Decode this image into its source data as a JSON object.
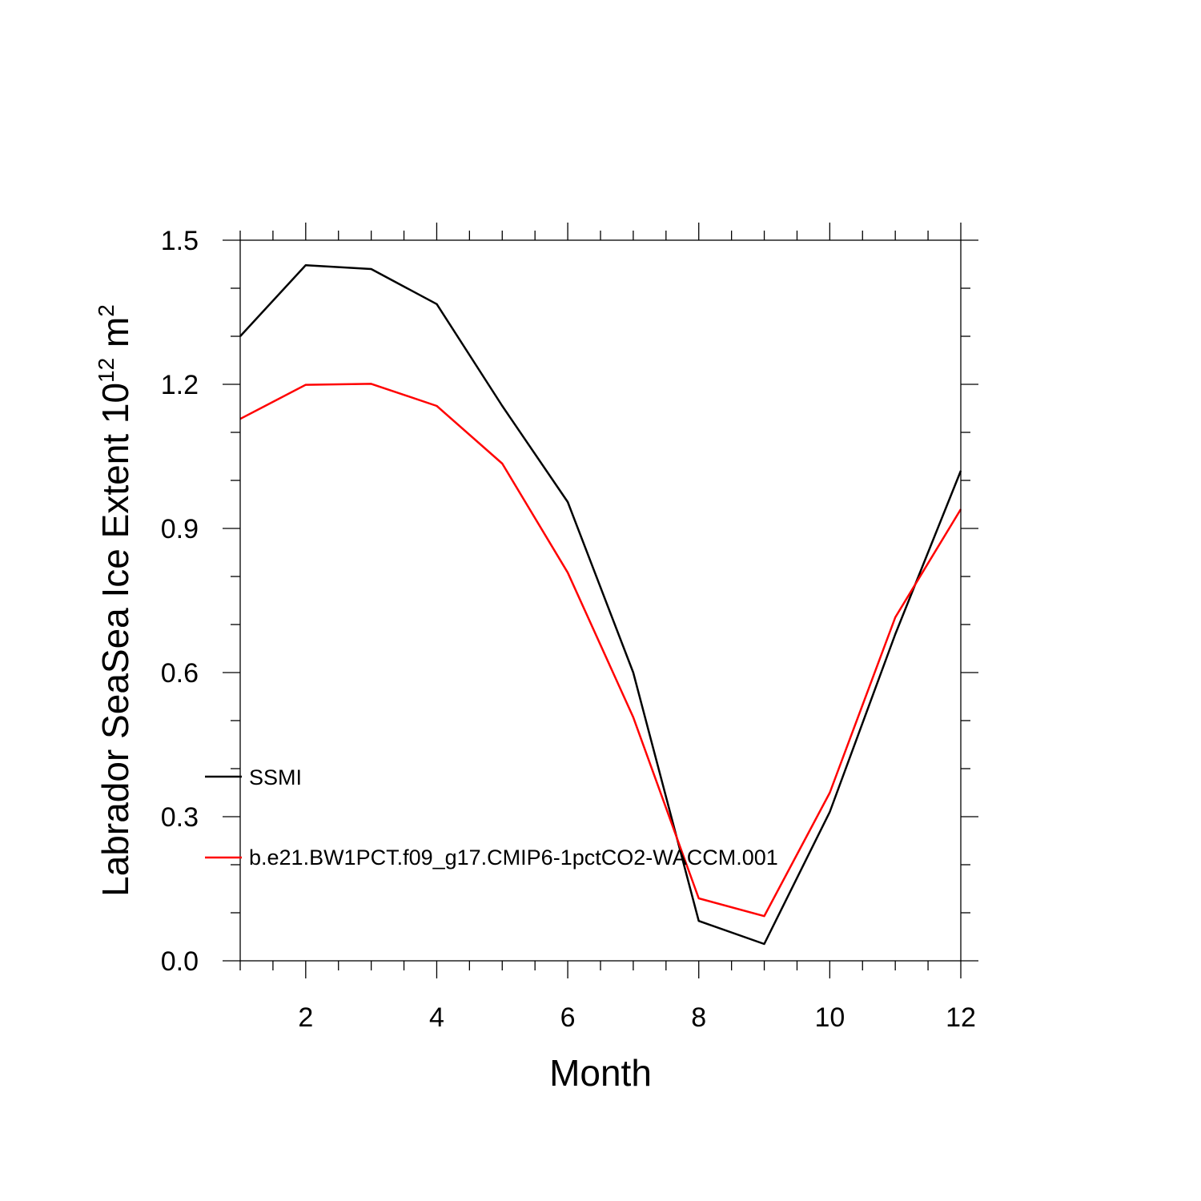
{
  "chart_data": {
    "type": "line",
    "xlabel": "Month",
    "ylabel": {
      "text": "Labrador SeaSea Ice Extent 10",
      "superscript1": "12",
      "unit": " m",
      "superscript2": "2"
    },
    "xlim": [
      1,
      12
    ],
    "ylim": [
      0.0,
      1.5
    ],
    "x_major_ticks": [
      2,
      4,
      6,
      8,
      10,
      12
    ],
    "x_tick_labels": [
      "2",
      "4",
      "6",
      "8",
      "10",
      "12"
    ],
    "y_major_ticks": [
      0.0,
      0.3,
      0.6,
      0.9,
      1.2,
      1.5
    ],
    "y_tick_labels": [
      "0.0",
      "0.3",
      "0.6",
      "0.9",
      "1.2",
      "1.5"
    ],
    "grid": false,
    "legend_position": "lower-left inside",
    "x": [
      1,
      2,
      3,
      4,
      5,
      6,
      7,
      8,
      9,
      10,
      11,
      12
    ],
    "series": [
      {
        "name": "SSMI",
        "color": "#000000",
        "values": [
          1.3,
          1.448,
          1.44,
          1.367,
          1.155,
          0.955,
          0.6,
          0.083,
          0.035,
          0.31,
          0.68,
          1.02
        ]
      },
      {
        "name": "b.e21.BW1PCT.f09_g17.CMIP6-1pctCO2-WACCM.001",
        "color": "#ff0000",
        "values": [
          1.128,
          1.199,
          1.201,
          1.155,
          1.035,
          0.808,
          0.507,
          0.13,
          0.093,
          0.35,
          0.715,
          0.94
        ]
      }
    ]
  }
}
